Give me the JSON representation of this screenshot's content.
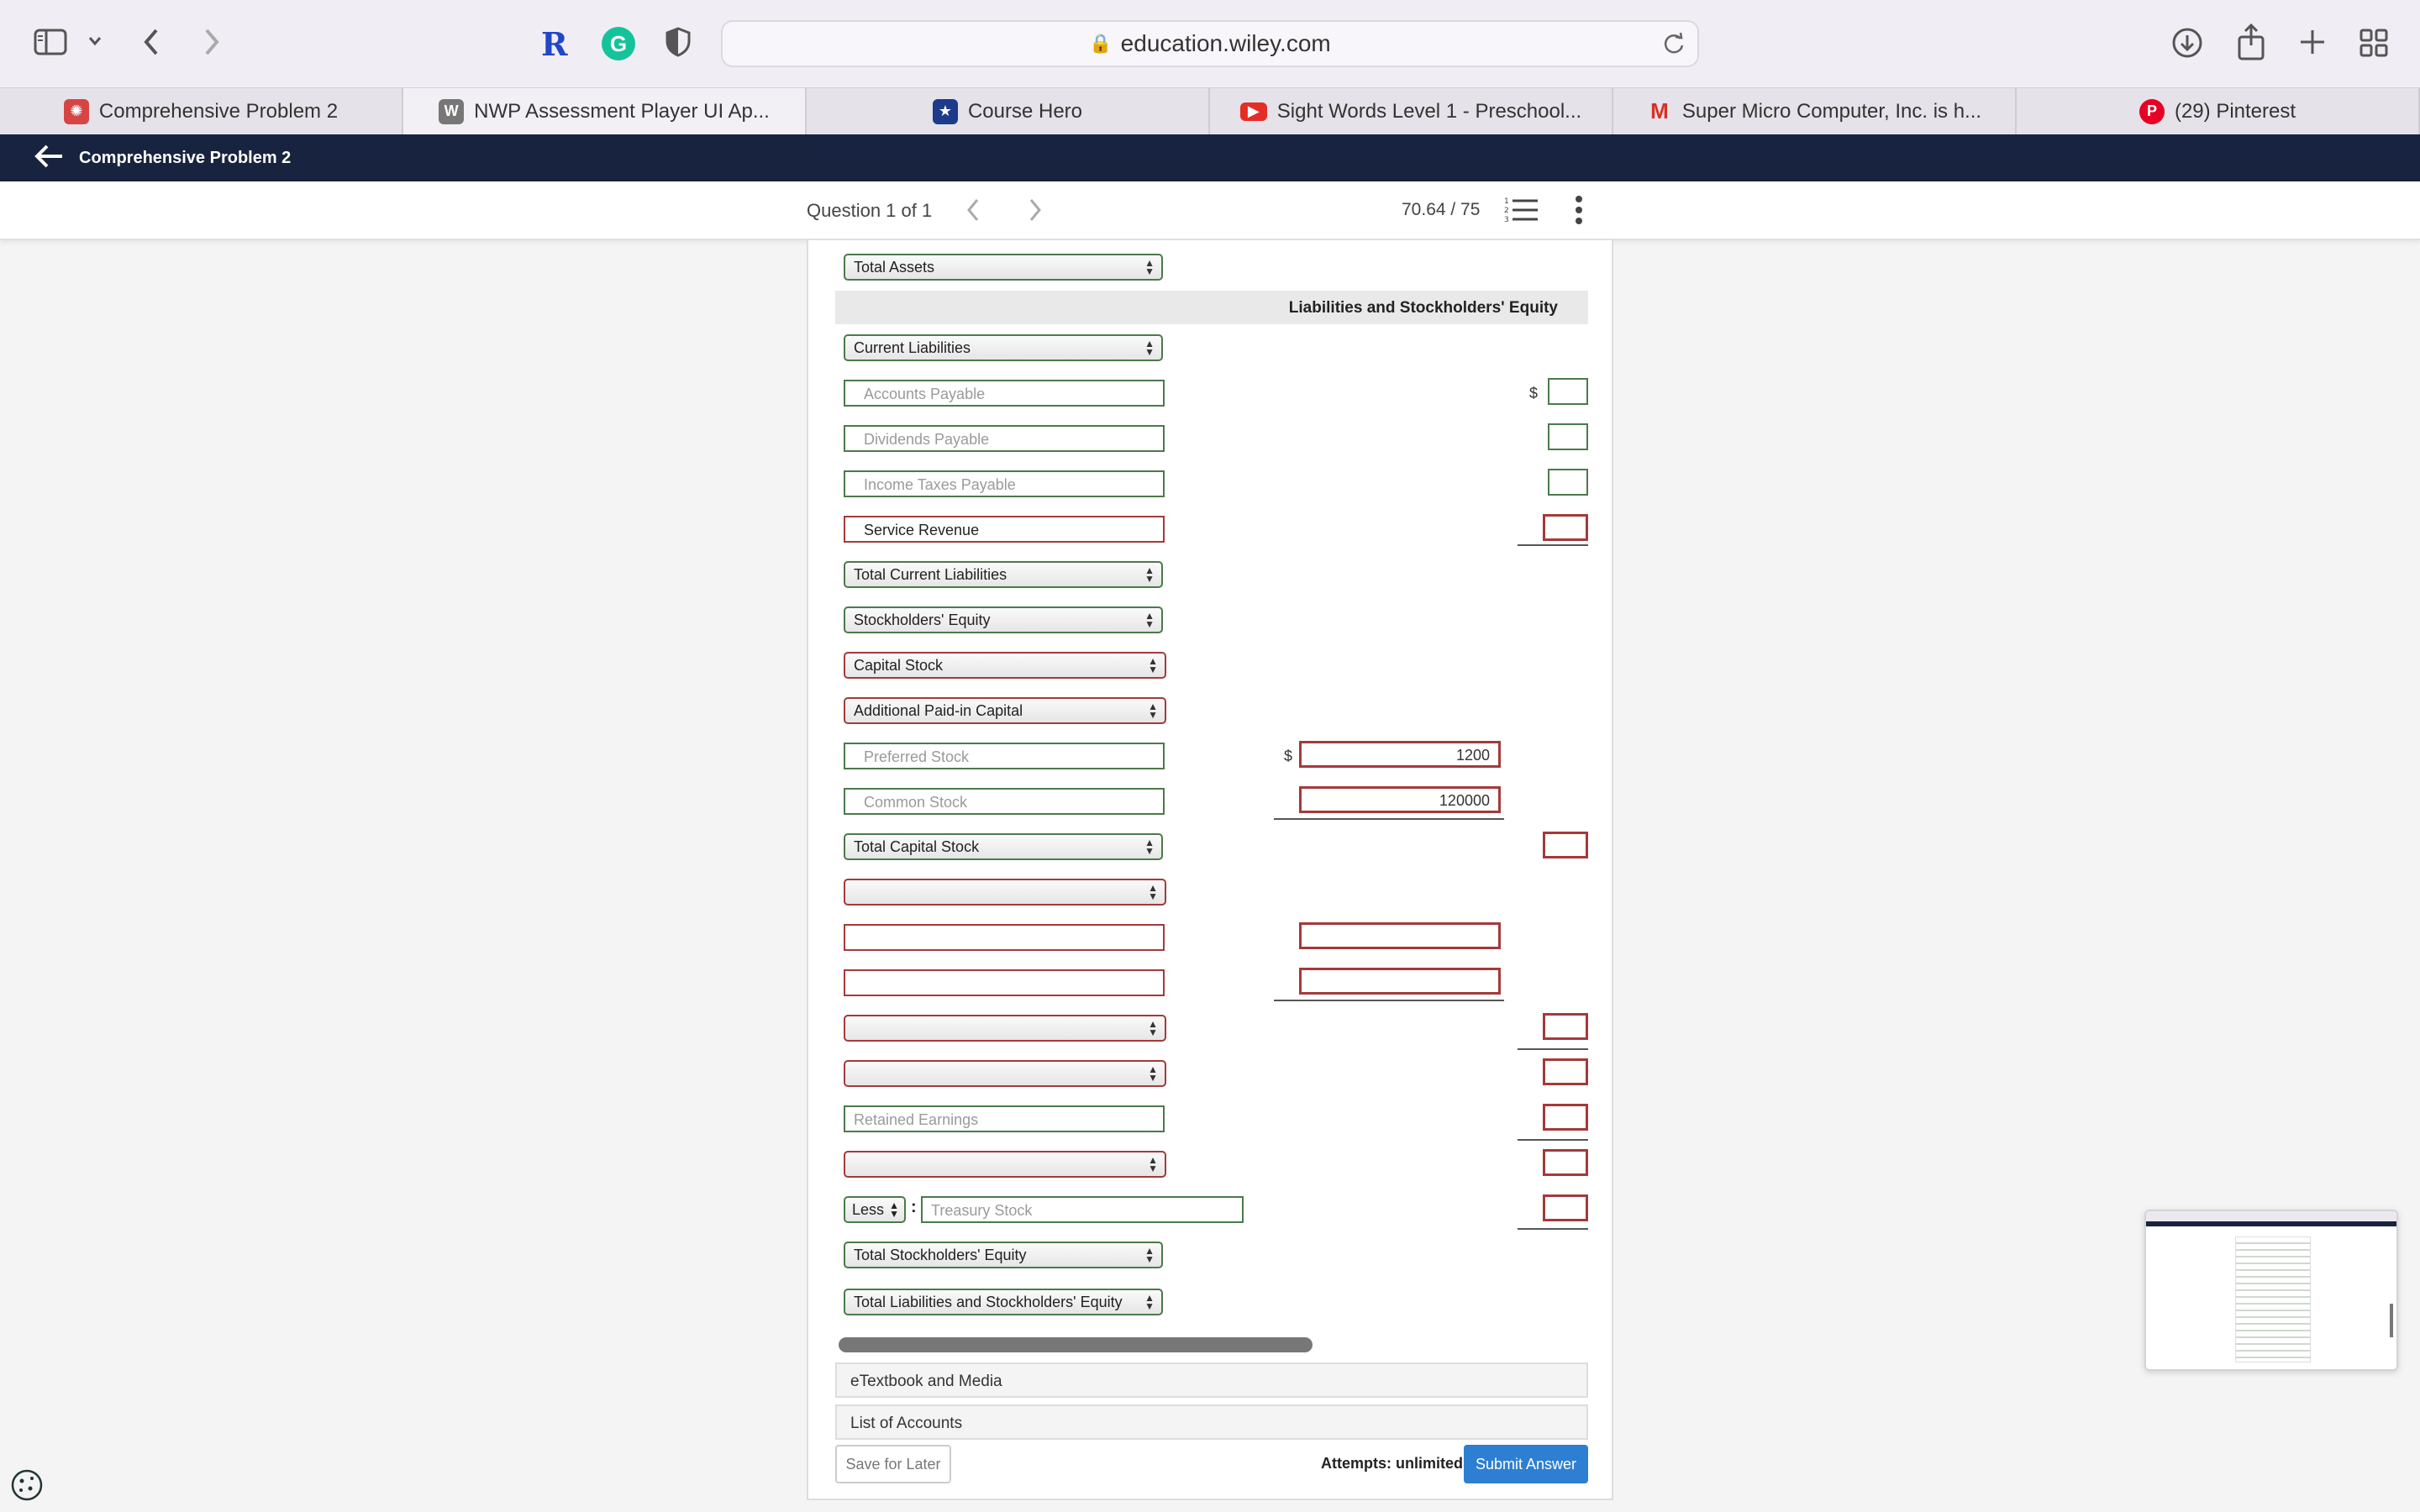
{
  "browser": {
    "url": "education.wiley.com",
    "tabs": [
      {
        "label": "Comprehensive Problem 2",
        "icon": "canvas-icon",
        "color": "#d64545"
      },
      {
        "label": "NWP Assessment Player UI Ap...",
        "icon": "wiley-w-icon",
        "color": "#777777"
      },
      {
        "label": "Course Hero",
        "icon": "course-hero-star-icon",
        "color": "#1e3a8a"
      },
      {
        "label": "Sight Words Level 1 - Preschool...",
        "icon": "youtube-icon",
        "color": "#e52d27"
      },
      {
        "label": "Super Micro Computer, Inc. is h...",
        "icon": "gmail-icon",
        "color": "#d93025"
      },
      {
        "label": "(29) Pinterest",
        "icon": "pinterest-icon",
        "color": "#e60023"
      }
    ],
    "extension_letters": {
      "r": "R",
      "g": "G"
    }
  },
  "app": {
    "title": "Comprehensive Problem 2",
    "question": "Question 1 of 1",
    "score": "70.64 / 75"
  },
  "form": {
    "total_assets": "Total Assets",
    "liab_heading": "Liabilities and Stockholders' Equity",
    "current_liabilities": "Current Liabilities",
    "accounts_payable": "Accounts Payable",
    "dividends_payable": "Dividends Payable",
    "income_taxes_payable": "Income Taxes Payable",
    "service_revenue": "Service Revenue",
    "total_current_liabilities": "Total Current Liabilities",
    "stockholders_equity": "Stockholders' Equity",
    "capital_stock": "Capital Stock",
    "additional_paid_in": "Additional Paid-in Capital",
    "preferred_stock": "Preferred Stock",
    "preferred_value": "1200",
    "common_stock": "Common Stock",
    "common_value": "120000",
    "total_capital_stock": "Total Capital Stock",
    "retained_earnings": "Retained Earnings",
    "less": "Less",
    "treasury_stock": "Treasury Stock",
    "total_stockholders_equity": "Total Stockholders' Equity",
    "total_liab_equity": "Total Liabilities and Stockholders' Equity",
    "dollar": "$",
    "colon": ":"
  },
  "footer": {
    "etextbook": "eTextbook and Media",
    "list_accounts": "List of Accounts",
    "save": "Save for Later",
    "attempts": "Attempts: unlimited",
    "submit": "Submit Answer"
  }
}
